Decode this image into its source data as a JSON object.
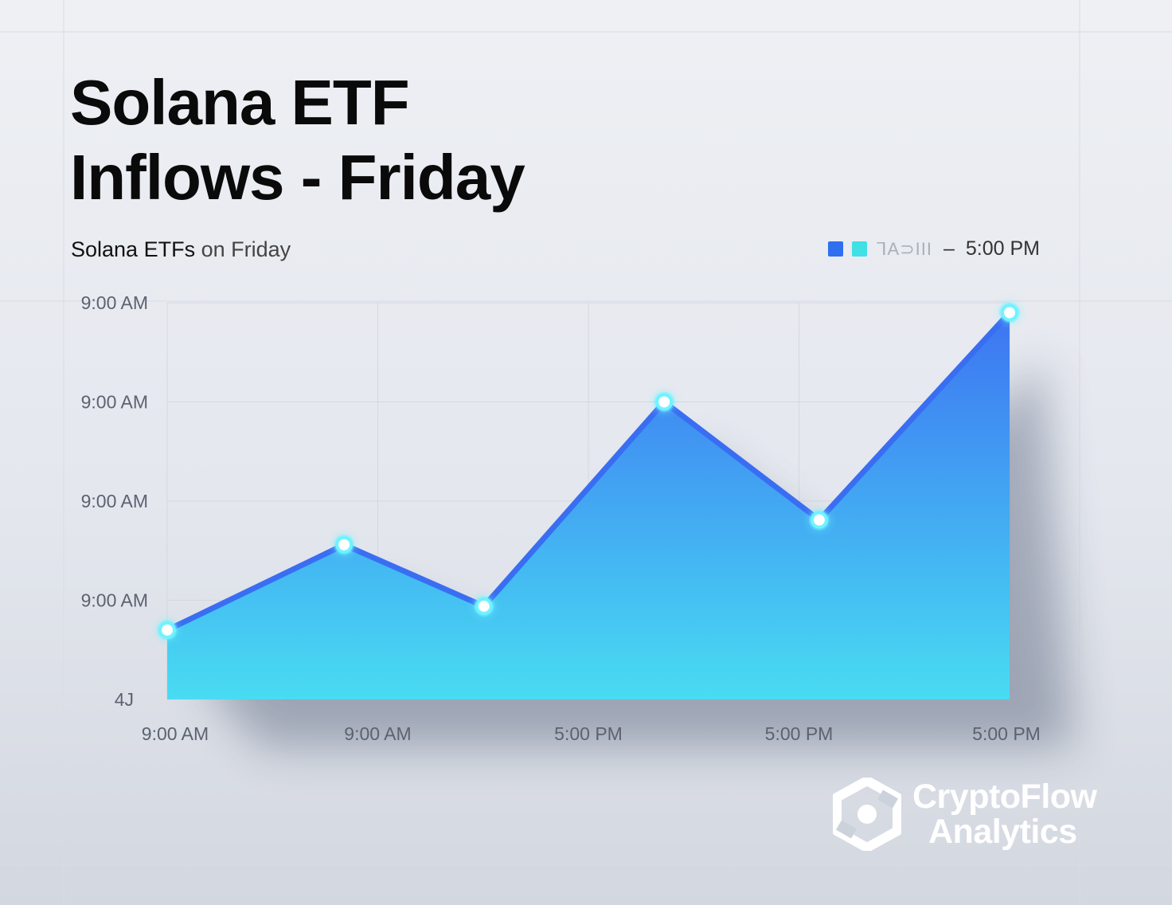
{
  "title_line1": "Solana ETF",
  "title_line2": "Inflows - Friday",
  "subtitle_bold": "Solana ETFs",
  "subtitle_light": "on Friday",
  "legend": {
    "swatch_colors": [
      "#2f6ff0",
      "#3fe0e6"
    ],
    "garbled_text": "ᒣA⊃III",
    "dash": "–",
    "label": "5:00 PM"
  },
  "colors": {
    "line": "#3a6ef2",
    "area_top": "#3d74f2",
    "area_bottom": "#48dcf2",
    "marker": "#6ff3ff"
  },
  "chart_data": {
    "type": "area",
    "x_tick_labels": [
      "9:00 AM",
      "9:00 AM",
      "5:00 PM",
      "5:00 PM",
      "5:00 PM"
    ],
    "y_tick_labels": [
      "9:00 AM",
      "9:00 AM",
      "9:00 AM",
      "9:00 AM",
      "4J"
    ],
    "y_ticks": [
      4,
      3,
      2,
      1,
      0
    ],
    "ylim": [
      0,
      4
    ],
    "x": [
      0,
      1.05,
      1.88,
      2.95,
      3.87,
      5
    ],
    "xlim": [
      0,
      5
    ],
    "values": [
      0.7,
      1.56,
      0.94,
      3.0,
      1.81,
      3.9
    ],
    "grid": true,
    "legend_position": "top-right"
  },
  "logo": {
    "line1": "CryptoFlow",
    "line2": "Analytics"
  }
}
